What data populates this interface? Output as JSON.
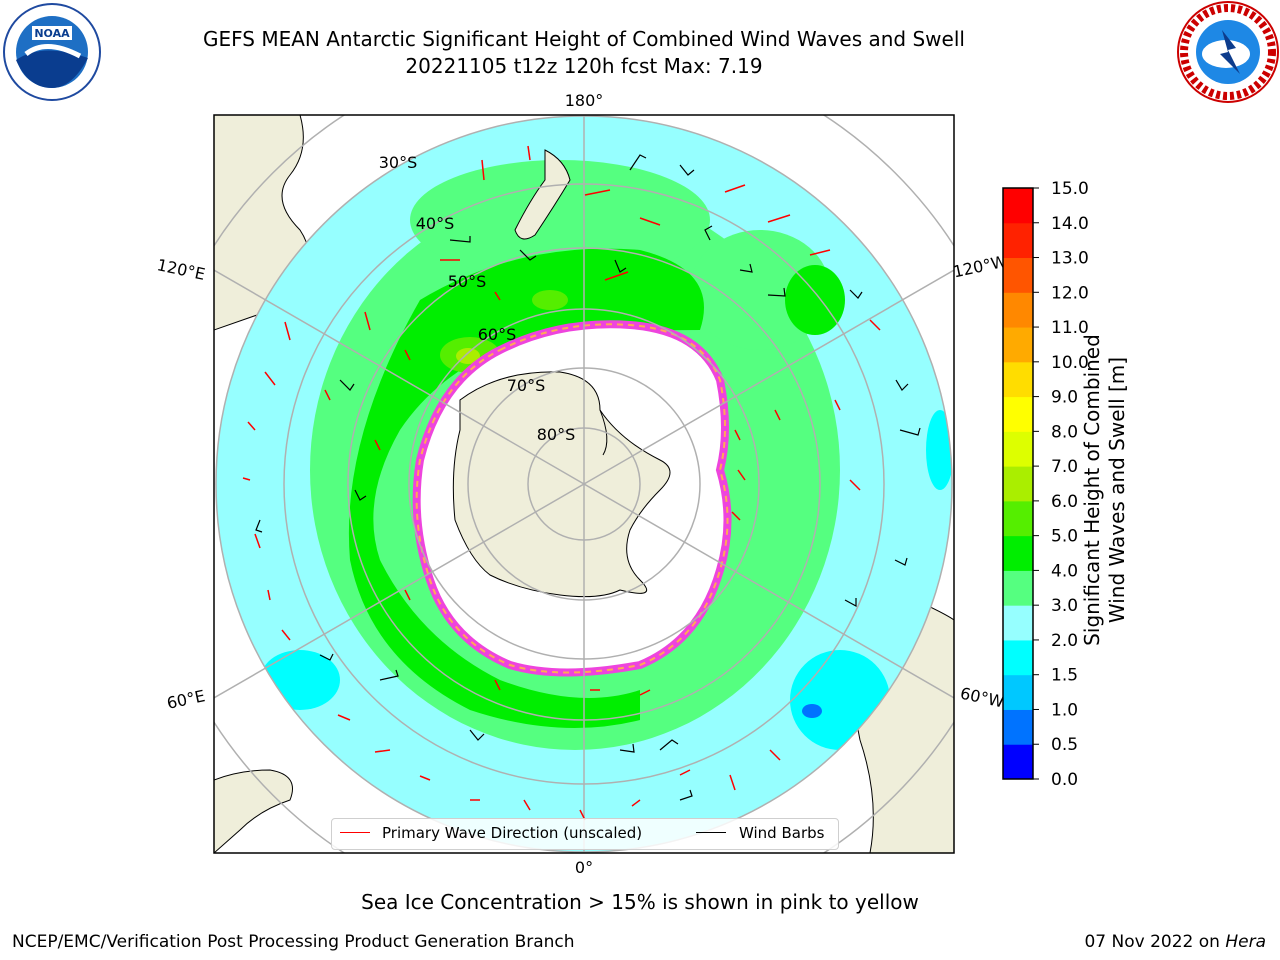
{
  "title": {
    "line1": "GEFS MEAN Antarctic Significant Height of Combined Wind Waves and Swell",
    "line2": "20221105 t12z 120h fcst   Max: 7.19"
  },
  "logos": {
    "left": "noaa-logo",
    "right": "nws-logo"
  },
  "map": {
    "projection": "south-polar-stereographic",
    "longitude_labels": {
      "top": "180°",
      "bottom": "0°",
      "left_upper": "120°E",
      "left_lower": "60°E",
      "right_upper": "120°W",
      "right_lower": "60°W"
    },
    "latitude_labels": [
      "30°S",
      "40°S",
      "50°S",
      "60°S",
      "70°S",
      "80°S"
    ]
  },
  "legend": {
    "wave_label": "Primary Wave Direction (unscaled)",
    "barb_label": "Wind Barbs",
    "wave_color": "#ff0000",
    "barb_color": "#000000"
  },
  "colorbar": {
    "title_line1": "Significant Height of Combined",
    "title_line2": "Wind Waves and Swell [m]",
    "ticks": [
      "0.0",
      "0.5",
      "1.0",
      "1.5",
      "2.0",
      "3.0",
      "4.0",
      "5.0",
      "6.0",
      "7.0",
      "8.0",
      "9.0",
      "10.0",
      "11.0",
      "12.0",
      "13.0",
      "14.0",
      "15.0"
    ],
    "colors": [
      "#0000ff",
      "#0073ff",
      "#00c8ff",
      "#00ffff",
      "#96ffff",
      "#55ff80",
      "#00ee00",
      "#55ee00",
      "#aaee00",
      "#ddff00",
      "#ffff00",
      "#ffdd00",
      "#ffaa00",
      "#ff8800",
      "#ff5500",
      "#ff2200",
      "#ff0000"
    ]
  },
  "ice_note": "Sea Ice Concentration > 15% is shown in pink to yellow",
  "footer": {
    "left": "NCEP/EMC/Verification Post Processing Product Generation Branch",
    "right_prefix": "07 Nov 2022 on ",
    "right_italic": "Hera"
  }
}
